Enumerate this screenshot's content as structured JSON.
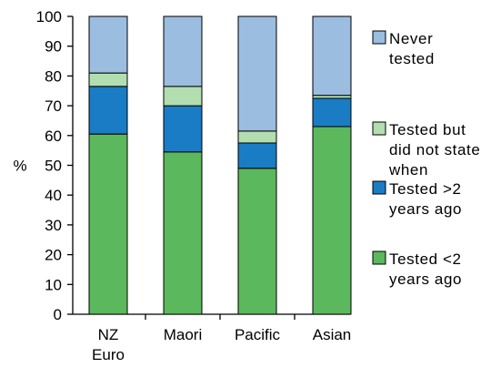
{
  "chart_data": {
    "type": "bar",
    "stacked": true,
    "categories": [
      "NZ Euro",
      "Maori",
      "Pacific",
      "Asian"
    ],
    "category_lines": [
      [
        "NZ",
        "Euro"
      ],
      [
        "Maori"
      ],
      [
        "Pacific"
      ],
      [
        "Asian"
      ]
    ],
    "series": [
      {
        "name": "Tested <2 years ago",
        "legend_lines": [
          "Tested <2",
          "years ago"
        ],
        "color": "#5cb85c",
        "values": [
          60.5,
          54.5,
          49,
          63
        ]
      },
      {
        "name": "Tested >2 years ago",
        "legend_lines": [
          "Tested >2",
          "years ago"
        ],
        "color": "#1a7cc4",
        "values": [
          16,
          15.5,
          8.5,
          9.5
        ]
      },
      {
        "name": "Tested but did not state when",
        "legend_lines": [
          "Tested but",
          "did not state",
          "when"
        ],
        "color": "#b3deb0",
        "values": [
          4.5,
          6.5,
          4,
          1
        ]
      },
      {
        "name": "Never tested",
        "legend_lines": [
          "Never",
          "tested"
        ],
        "color": "#9bbde0",
        "values": [
          19,
          23.5,
          38.5,
          26.5
        ]
      }
    ],
    "ylabel": "%",
    "xlabel": "",
    "ylim": [
      0,
      100
    ],
    "yticks": [
      0,
      10,
      20,
      30,
      40,
      50,
      60,
      70,
      80,
      90,
      100
    ],
    "grid": false,
    "legend_position": "right"
  }
}
